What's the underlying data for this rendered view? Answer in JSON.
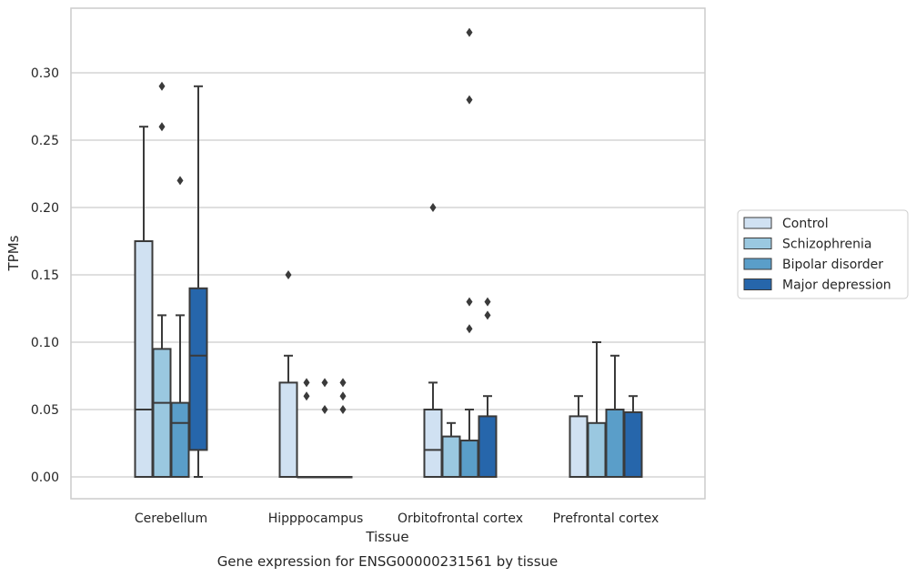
{
  "chart_data": {
    "type": "box",
    "title": "",
    "caption": "Gene expression for ENSG00000231561 by tissue",
    "xlabel": "Tissue",
    "ylabel": "TPMs",
    "ylim": [
      -0.016,
      0.347
    ],
    "yticks": [
      "0.00",
      "0.05",
      "0.10",
      "0.15",
      "0.20",
      "0.25",
      "0.30"
    ],
    "grid": "horizontal",
    "legend_position": "right",
    "categories": [
      "Cerebellum",
      "Hipppocampus",
      "Orbitofrontal cortex",
      "Prefrontal cortex"
    ],
    "series": [
      {
        "name": "Control",
        "color": "#d0e1f2",
        "boxes": [
          {
            "q1": 0.0,
            "median": 0.05,
            "q3": 0.175,
            "whisker_low": 0.0,
            "whisker_high": 0.26,
            "outliers": []
          },
          {
            "q1": 0.0,
            "median": 0.0,
            "q3": 0.07,
            "whisker_low": 0.0,
            "whisker_high": 0.09,
            "outliers": [
              0.15
            ]
          },
          {
            "q1": 0.0,
            "median": 0.02,
            "q3": 0.05,
            "whisker_low": 0.0,
            "whisker_high": 0.07,
            "outliers": [
              0.2
            ]
          },
          {
            "q1": 0.0,
            "median": 0.0,
            "q3": 0.045,
            "whisker_low": 0.0,
            "whisker_high": 0.06,
            "outliers": []
          }
        ]
      },
      {
        "name": "Schizophrenia",
        "color": "#9ac8e0",
        "boxes": [
          {
            "q1": 0.0,
            "median": 0.055,
            "q3": 0.095,
            "whisker_low": 0.0,
            "whisker_high": 0.12,
            "outliers": [
              0.26,
              0.29
            ]
          },
          {
            "q1": 0.0,
            "median": 0.0,
            "q3": 0.0,
            "whisker_low": 0.0,
            "whisker_high": 0.0,
            "outliers": [
              0.06,
              0.07
            ]
          },
          {
            "q1": 0.0,
            "median": 0.0,
            "q3": 0.03,
            "whisker_low": 0.0,
            "whisker_high": 0.04,
            "outliers": []
          },
          {
            "q1": 0.0,
            "median": 0.0,
            "q3": 0.04,
            "whisker_low": 0.0,
            "whisker_high": 0.1,
            "outliers": []
          }
        ]
      },
      {
        "name": "Bipolar disorder",
        "color": "#5a9ec9",
        "boxes": [
          {
            "q1": 0.0,
            "median": 0.04,
            "q3": 0.055,
            "whisker_low": 0.0,
            "whisker_high": 0.12,
            "outliers": [
              0.22
            ]
          },
          {
            "q1": 0.0,
            "median": 0.0,
            "q3": 0.0,
            "whisker_low": 0.0,
            "whisker_high": 0.0,
            "outliers": [
              0.05,
              0.07
            ]
          },
          {
            "q1": 0.0,
            "median": 0.0,
            "q3": 0.027,
            "whisker_low": 0.0,
            "whisker_high": 0.05,
            "outliers": [
              0.11,
              0.13,
              0.28,
              0.33
            ]
          },
          {
            "q1": 0.0,
            "median": 0.0,
            "q3": 0.05,
            "whisker_low": 0.0,
            "whisker_high": 0.09,
            "outliers": []
          }
        ]
      },
      {
        "name": "Major depression",
        "color": "#2666ab",
        "boxes": [
          {
            "q1": 0.02,
            "median": 0.09,
            "q3": 0.14,
            "whisker_low": 0.0,
            "whisker_high": 0.29,
            "outliers": []
          },
          {
            "q1": 0.0,
            "median": 0.0,
            "q3": 0.0,
            "whisker_low": 0.0,
            "whisker_high": 0.0,
            "outliers": [
              0.05,
              0.06,
              0.07
            ]
          },
          {
            "q1": 0.0,
            "median": 0.0,
            "q3": 0.045,
            "whisker_low": 0.0,
            "whisker_high": 0.06,
            "outliers": [
              0.12,
              0.13
            ]
          },
          {
            "q1": 0.0,
            "median": 0.0,
            "q3": 0.048,
            "whisker_low": 0.0,
            "whisker_high": 0.06,
            "outliers": []
          }
        ]
      }
    ]
  },
  "colors": {
    "axis_frame": "#cccccc",
    "gridline": "#cccccc",
    "box_edge": "#3a3a3a",
    "text": "#262626"
  }
}
